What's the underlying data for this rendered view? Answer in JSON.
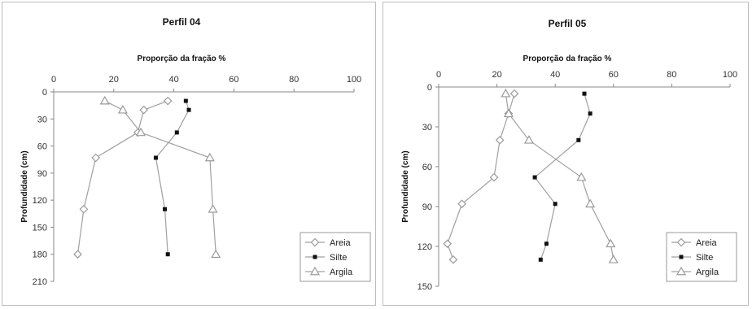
{
  "chart_data": [
    {
      "type": "line",
      "title": "Perfil 04",
      "xlabel": "Proporção da fração %",
      "ylabel": "Profundidade (cm)",
      "xlim": [
        0,
        100
      ],
      "ylim": [
        0,
        210
      ],
      "y_inverted": true,
      "x_axis_position": "top",
      "xticks": [
        "0",
        "20",
        "40",
        "60",
        "80",
        "100"
      ],
      "yticks": [
        "0",
        "30",
        "60",
        "90",
        "120",
        "150",
        "180",
        "210"
      ],
      "grid": false,
      "legend_position": "bottom-right",
      "series": [
        {
          "name": "Areia",
          "marker": "diamond",
          "color": "#9a9a9a",
          "points": [
            [
              38,
              10
            ],
            [
              30,
              20
            ],
            [
              28,
              45
            ],
            [
              14,
              73
            ],
            [
              10,
              130
            ],
            [
              8,
              180
            ]
          ]
        },
        {
          "name": "Silte",
          "marker": "square",
          "color": "#111111",
          "points": [
            [
              44,
              10
            ],
            [
              45,
              20
            ],
            [
              41,
              45
            ],
            [
              34,
              73
            ],
            [
              37,
              130
            ],
            [
              38,
              180
            ]
          ]
        },
        {
          "name": "Argila",
          "marker": "triangle",
          "color": "#9a9a9a",
          "points": [
            [
              17,
              10
            ],
            [
              23,
              20
            ],
            [
              29,
              45
            ],
            [
              52,
              73
            ],
            [
              53,
              130
            ],
            [
              54,
              180
            ]
          ]
        }
      ]
    },
    {
      "type": "line",
      "title": "Perfil 05",
      "xlabel": "Proporção da fração %",
      "ylabel": "Profundidade (cm)",
      "xlim": [
        0,
        100
      ],
      "ylim": [
        0,
        150
      ],
      "y_inverted": true,
      "x_axis_position": "top",
      "xticks": [
        "0",
        "20",
        "40",
        "60",
        "80",
        "100"
      ],
      "yticks": [
        "0",
        "30",
        "60",
        "90",
        "120",
        "150"
      ],
      "grid": false,
      "legend_position": "bottom-right",
      "series": [
        {
          "name": "Areia",
          "marker": "diamond",
          "color": "#9a9a9a",
          "points": [
            [
              26,
              5
            ],
            [
              24,
              20
            ],
            [
              21,
              40
            ],
            [
              19,
              68
            ],
            [
              8,
              88
            ],
            [
              3,
              118
            ],
            [
              5,
              130
            ]
          ]
        },
        {
          "name": "Silte",
          "marker": "square",
          "color": "#111111",
          "points": [
            [
              50,
              5
            ],
            [
              52,
              20
            ],
            [
              48,
              40
            ],
            [
              33,
              68
            ],
            [
              40,
              88
            ],
            [
              37,
              118
            ],
            [
              35,
              130
            ]
          ]
        },
        {
          "name": "Argila",
          "marker": "triangle",
          "color": "#9a9a9a",
          "points": [
            [
              23,
              5
            ],
            [
              24,
              20
            ],
            [
              31,
              40
            ],
            [
              49,
              68
            ],
            [
              52,
              88
            ],
            [
              59,
              118
            ],
            [
              60,
              130
            ]
          ]
        }
      ]
    }
  ]
}
